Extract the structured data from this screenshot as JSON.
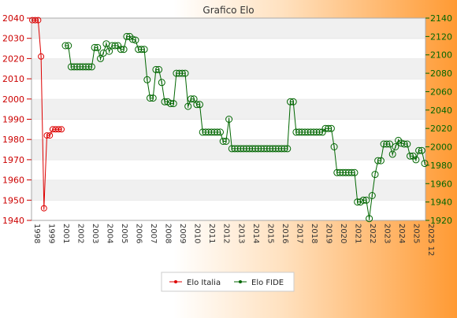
{
  "chart_data": {
    "type": "line",
    "title": "Grafico Elo",
    "left_axis": {
      "ylim": [
        1940,
        2040
      ],
      "ticks": [
        1940,
        1950,
        1960,
        1970,
        1980,
        1990,
        2000,
        2010,
        2020,
        2030,
        2040
      ]
    },
    "right_axis": {
      "ylim": [
        1920,
        2140
      ],
      "ticks": [
        1920,
        1940,
        1960,
        1980,
        2000,
        2020,
        2040,
        2060,
        2080,
        2100,
        2120,
        2140
      ]
    },
    "grid": "horizontal bands",
    "legend_position": "bottom",
    "x_label_sample": [
      "1998",
      "1999",
      "2001",
      "2002",
      "2003",
      "2004",
      "2005",
      "2006",
      "2007",
      "2008",
      "2009",
      "2010",
      "2011",
      "2012",
      "2013",
      "2014",
      "2015",
      "2016",
      "2017",
      "2018",
      "2019",
      "2020",
      "2021",
      "2022",
      "2023",
      "2024",
      "2025",
      "2025 12"
    ],
    "series": [
      {
        "name": "Elo Italia",
        "axis": "left",
        "color": "#dd0000",
        "values": [
          2039,
          2039,
          2039,
          2021,
          1946,
          1982,
          1982,
          1985,
          1985,
          1985,
          1985
        ]
      },
      {
        "name": "Elo FIDE",
        "axis": "right",
        "color": "#006600",
        "values": [
          2110,
          2110,
          2087,
          2087,
          2087,
          2087,
          2087,
          2087,
          2087,
          2087,
          2108,
          2108,
          2096,
          2102,
          2112,
          2104,
          2110,
          2110,
          2110,
          2106,
          2106,
          2120,
          2120,
          2117,
          2116,
          2106,
          2106,
          2106,
          2073,
          2053,
          2053,
          2084,
          2084,
          2070,
          2049,
          2049,
          2047,
          2047,
          2080,
          2080,
          2080,
          2080,
          2044,
          2052,
          2052,
          2046,
          2046,
          2016,
          2016,
          2016,
          2016,
          2016,
          2016,
          2016,
          2006,
          2006,
          2030,
          1998,
          1998,
          1998,
          1998,
          1998,
          1998,
          1998,
          1998,
          1998,
          1998,
          1998,
          1998,
          1998,
          1998,
          1998,
          1998,
          1998,
          1998,
          1998,
          1998,
          2049,
          2049,
          2016,
          2016,
          2016,
          2016,
          2016,
          2016,
          2016,
          2016,
          2016,
          2016,
          2020,
          2020,
          2020,
          2000,
          1972,
          1972,
          1972,
          1972,
          1972,
          1972,
          1972,
          1940,
          1940,
          1942,
          1942,
          1922,
          1947,
          1970,
          1985,
          1985,
          2003,
          2003,
          2003,
          1992,
          2000,
          2007,
          2004,
          2003,
          2003,
          1990,
          1990,
          1986,
          1996,
          1996,
          1982
        ]
      }
    ]
  }
}
